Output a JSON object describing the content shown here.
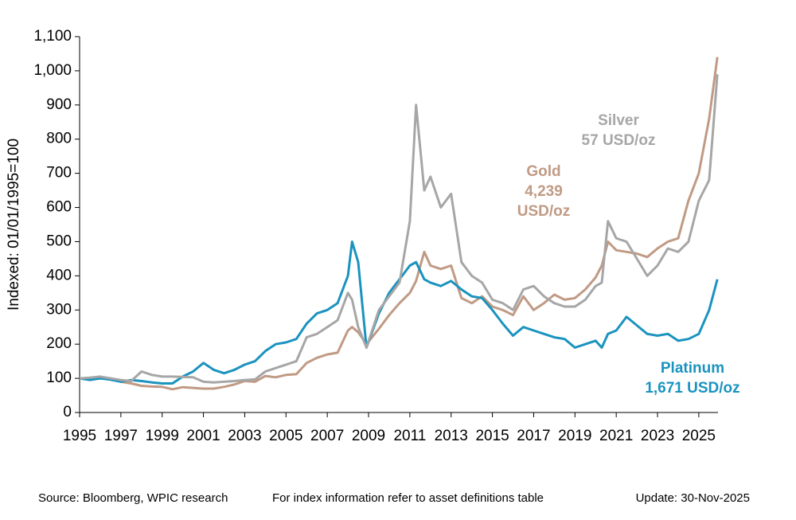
{
  "chart_data": {
    "type": "line",
    "y_label": "Indexed: 01/01/1995=100",
    "xlim": [
      1995,
      2025.93
    ],
    "xticks": [
      1995,
      1997,
      1999,
      2001,
      2003,
      2005,
      2007,
      2009,
      2011,
      2013,
      2015,
      2017,
      2019,
      2021,
      2023,
      2025
    ],
    "ylim": [
      0,
      1100
    ],
    "yticks": [
      0,
      100,
      200,
      300,
      400,
      500,
      600,
      700,
      800,
      900,
      {
        "value": 1000,
        "label": "1,000"
      },
      {
        "value": 1100,
        "label": "1,100"
      }
    ],
    "x": [
      1995,
      1995.5,
      1996,
      1996.5,
      1997,
      1997.5,
      1998,
      1998.5,
      1999,
      1999.5,
      2000,
      2000.5,
      2001,
      2001.5,
      2002,
      2002.5,
      2003,
      2003.5,
      2004,
      2004.5,
      2005,
      2005.5,
      2006,
      2006.5,
      2007,
      2007.5,
      2008,
      2008.2,
      2008.5,
      2008.9,
      2009.5,
      2010,
      2010.5,
      2011,
      2011.3,
      2011.7,
      2012,
      2012.5,
      2013,
      2013.5,
      2014,
      2014.5,
      2015,
      2015.5,
      2016,
      2016.5,
      2017,
      2017.5,
      2018,
      2018.5,
      2019,
      2019.5,
      2020,
      2020.3,
      2020.6,
      2021,
      2021.5,
      2022,
      2022.5,
      2023,
      2023.5,
      2024,
      2024.5,
      2025,
      2025.5,
      2025.9
    ],
    "series": [
      {
        "name": "Gold",
        "color": "#c09a84",
        "label_lines": [
          "4,239",
          "USD/oz"
        ],
        "values": [
          100,
          100,
          100,
          100,
          90,
          85,
          78,
          76,
          75,
          68,
          74,
          72,
          70,
          70,
          75,
          82,
          92,
          90,
          107,
          103,
          110,
          112,
          145,
          160,
          170,
          175,
          240,
          250,
          235,
          200,
          245,
          285,
          320,
          350,
          385,
          470,
          430,
          420,
          430,
          335,
          320,
          340,
          310,
          300,
          285,
          340,
          300,
          320,
          345,
          330,
          335,
          360,
          395,
          430,
          500,
          475,
          470,
          465,
          455,
          480,
          500,
          510,
          620,
          700,
          860,
          1040
        ]
      },
      {
        "name": "Platinum",
        "color": "#1a93bf",
        "label_lines": [
          "1,671 USD/oz"
        ],
        "values": [
          100,
          95,
          100,
          96,
          90,
          95,
          92,
          88,
          85,
          85,
          105,
          120,
          145,
          125,
          115,
          125,
          140,
          150,
          180,
          200,
          205,
          215,
          260,
          290,
          300,
          320,
          400,
          500,
          440,
          190,
          290,
          350,
          390,
          430,
          440,
          390,
          380,
          370,
          385,
          360,
          340,
          335,
          300,
          260,
          225,
          250,
          240,
          230,
          220,
          215,
          190,
          200,
          210,
          190,
          230,
          240,
          280,
          255,
          230,
          225,
          230,
          210,
          215,
          230,
          300,
          390
        ]
      },
      {
        "name": "Silver",
        "color": "#a6a6a6",
        "label_lines": [
          "57 USD/oz"
        ],
        "values": [
          100,
          102,
          105,
          100,
          95,
          92,
          120,
          110,
          105,
          105,
          104,
          103,
          90,
          88,
          90,
          92,
          95,
          97,
          120,
          130,
          140,
          150,
          220,
          230,
          250,
          270,
          350,
          330,
          250,
          190,
          300,
          340,
          380,
          560,
          900,
          650,
          690,
          600,
          640,
          440,
          400,
          380,
          330,
          320,
          300,
          360,
          370,
          340,
          320,
          310,
          310,
          330,
          370,
          380,
          560,
          510,
          500,
          450,
          400,
          430,
          480,
          470,
          500,
          620,
          680,
          990
        ]
      }
    ],
    "footer": {
      "source": "Source: Bloomberg, WPIC research",
      "note": "For index information refer to asset definitions table",
      "update": "Update: 30-Nov-2025"
    }
  }
}
